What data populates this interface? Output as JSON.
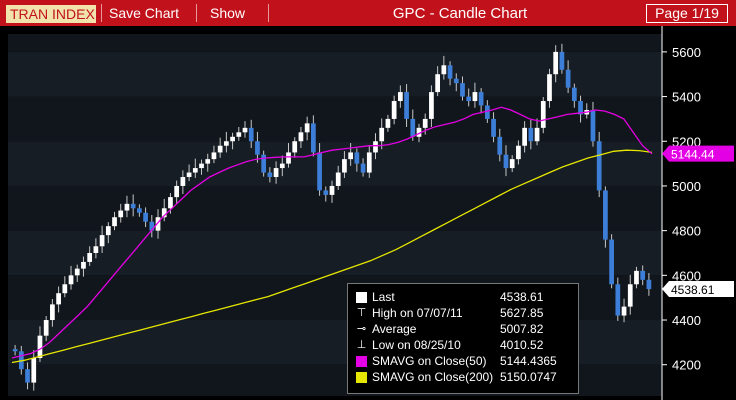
{
  "toolbar": {
    "ticker": "TRAN INDEX",
    "save_chart": "Save Chart",
    "show": "Show",
    "title": "GPC - Candle Chart",
    "page": "Page 1/19"
  },
  "colors": {
    "topbar": "#c1121b",
    "up_candle": "#ffffff",
    "down_candle": "#3d7fd8",
    "sma50": "#e400e4",
    "sma200": "#e6e600",
    "background_band_dark": "#10161c",
    "background_band_light": "#161d24"
  },
  "legend": {
    "last_label": "Last",
    "last_value": "4538.61",
    "high_label": "High on 07/07/11",
    "high_value": "5627.85",
    "avg_label": "Average",
    "avg_value": "5007.82",
    "low_label": "Low on 08/25/10",
    "low_value": "4010.52",
    "sma50_label": "SMAVG on Close(50)",
    "sma50_value": "5144.4365",
    "sma200_label": "SMAVG on Close(200)",
    "sma200_value": "5150.0747"
  },
  "chart_data": {
    "type": "candlestick",
    "title": "GPC - Candle Chart",
    "ylim": [
      4060,
      5680
    ],
    "yticks": [
      4200,
      4400,
      4600,
      4800,
      5000,
      5200,
      5400,
      5600
    ],
    "price_tags": [
      "5144.44",
      "4538.61"
    ],
    "close": [
      4260,
      4180,
      4120,
      4230,
      4330,
      4400,
      4470,
      4520,
      4560,
      4600,
      4630,
      4660,
      4700,
      4730,
      4780,
      4820,
      4860,
      4890,
      4920,
      4900,
      4880,
      4840,
      4800,
      4860,
      4900,
      4950,
      5000,
      5040,
      5060,
      5080,
      5100,
      5120,
      5150,
      5180,
      5200,
      5220,
      5240,
      5260,
      5200,
      5140,
      5060,
      5040,
      5080,
      5100,
      5150,
      5200,
      5240,
      5280,
      5150,
      4980,
      4960,
      5000,
      5060,
      5120,
      5150,
      5100,
      5060,
      5150,
      5200,
      5260,
      5300,
      5380,
      5420,
      5300,
      5220,
      5260,
      5300,
      5420,
      5500,
      5540,
      5480,
      5460,
      5400,
      5380,
      5420,
      5360,
      5300,
      5220,
      5140,
      5080,
      5120,
      5180,
      5260,
      5200,
      5260,
      5380,
      5500,
      5600,
      5520,
      5440,
      5380,
      5320,
      5340,
      5200,
      4980,
      4760,
      4560,
      4420,
      4460,
      4560,
      4620,
      4580,
      4538.61
    ],
    "sma50": [
      4230,
      4240,
      4250,
      4270,
      4300,
      4340,
      4380,
      4420,
      4460,
      4510,
      4560,
      4610,
      4660,
      4710,
      4760,
      4810,
      4860,
      4900,
      4940,
      4980,
      5010,
      5040,
      5060,
      5080,
      5095,
      5110,
      5120,
      5125,
      5128,
      5130,
      5130,
      5130,
      5140,
      5150,
      5160,
      5165,
      5170,
      5175,
      5180,
      5180,
      5185,
      5195,
      5210,
      5230,
      5250,
      5265,
      5275,
      5285,
      5300,
      5320,
      5330,
      5340,
      5352,
      5340,
      5320,
      5300,
      5290,
      5300,
      5310,
      5320,
      5325,
      5330,
      5340,
      5335,
      5320,
      5300,
      5240,
      5180,
      5144.4365
    ],
    "sma200": [
      4210,
      4220,
      4235,
      4250,
      4265,
      4280,
      4295,
      4310,
      4325,
      4340,
      4355,
      4370,
      4385,
      4400,
      4415,
      4430,
      4445,
      4460,
      4475,
      4490,
      4505,
      4525,
      4545,
      4565,
      4585,
      4605,
      4625,
      4645,
      4665,
      4690,
      4715,
      4745,
      4775,
      4805,
      4835,
      4865,
      4895,
      4925,
      4955,
      4985,
      5010,
      5035,
      5060,
      5085,
      5105,
      5125,
      5140,
      5155,
      5160,
      5158,
      5150.0747
    ]
  }
}
